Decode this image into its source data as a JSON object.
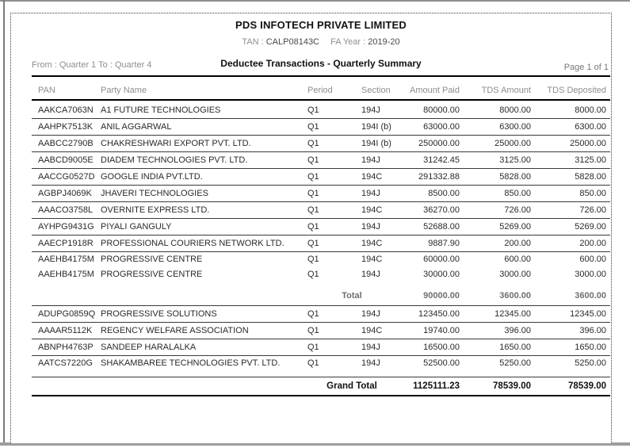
{
  "report": {
    "company": "PDS INFOTECH PRIVATE LIMITED",
    "tan_label": "TAN :",
    "tan_value": "CALP08143C",
    "fa_year_label": "FA Year :",
    "fa_year_value": "2019-20",
    "quarter_range": "From : Quarter 1 To : Quarter 4",
    "title": "Deductee Transactions - Quarterly Summary",
    "page_indicator": "Page 1 of 1"
  },
  "colors": {
    "rule_line": "#000000",
    "muted_text": "#8e8e8e"
  },
  "table": {
    "columns": [
      "PAN",
      "Party Name",
      "Period",
      "Section",
      "Amount Paid",
      "TDS Amount",
      "TDS Deposited"
    ],
    "body": [
      {
        "kind": "row",
        "pan": "AAKCA7063N",
        "party": "A1 FUTURE TECHNOLOGIES",
        "period": "Q1",
        "section": "194J",
        "amount_paid": "80000.00",
        "tds_amount": "8000.00",
        "tds_deposited": "8000.00",
        "divider": true
      },
      {
        "kind": "row",
        "pan": "AAHPK7513K",
        "party": "ANIL AGGARWAL",
        "period": "Q1",
        "section": "194I (b)",
        "amount_paid": "63000.00",
        "tds_amount": "6300.00",
        "tds_deposited": "6300.00",
        "divider": true
      },
      {
        "kind": "row",
        "pan": "AABCC2790B",
        "party": "CHAKRESHWARI EXPORT PVT. LTD.",
        "period": "Q1",
        "section": "194I (b)",
        "amount_paid": "250000.00",
        "tds_amount": "25000.00",
        "tds_deposited": "25000.00",
        "divider": true
      },
      {
        "kind": "row",
        "pan": "AABCD9005E",
        "party": "DIADEM TECHNOLOGIES PVT. LTD.",
        "period": "Q1",
        "section": "194J",
        "amount_paid": "31242.45",
        "tds_amount": "3125.00",
        "tds_deposited": "3125.00",
        "divider": true
      },
      {
        "kind": "row",
        "pan": "AACCG0527D",
        "party": "GOOGLE INDIA PVT.LTD.",
        "period": "Q1",
        "section": "194C",
        "amount_paid": "291332.88",
        "tds_amount": "5828.00",
        "tds_deposited": "5828.00",
        "divider": true
      },
      {
        "kind": "row",
        "pan": "AGBPJ4069K",
        "party": "JHAVERI TECHNOLOGIES",
        "period": "Q1",
        "section": "194J",
        "amount_paid": "8500.00",
        "tds_amount": "850.00",
        "tds_deposited": "850.00",
        "divider": true
      },
      {
        "kind": "row",
        "pan": "AAACO3758L",
        "party": "OVERNITE EXPRESS LTD.",
        "period": "Q1",
        "section": "194C",
        "amount_paid": "36270.00",
        "tds_amount": "726.00",
        "tds_deposited": "726.00",
        "divider": true
      },
      {
        "kind": "row",
        "pan": "AYHPG9431G",
        "party": "PIYALI GANGULY",
        "period": "Q1",
        "section": "194J",
        "amount_paid": "52688.00",
        "tds_amount": "5269.00",
        "tds_deposited": "5269.00",
        "divider": true
      },
      {
        "kind": "row",
        "pan": "AAECP1918R",
        "party": "PROFESSIONAL COURIERS NETWORK LTD.",
        "period": "Q1",
        "section": "194C",
        "amount_paid": "9887.90",
        "tds_amount": "200.00",
        "tds_deposited": "200.00",
        "divider": true
      },
      {
        "kind": "row",
        "pan": "AAEHB4175M",
        "party": "PROGRESSIVE CENTRE",
        "period": "Q1",
        "section": "194C",
        "amount_paid": "60000.00",
        "tds_amount": "600.00",
        "tds_deposited": "600.00",
        "divider": false
      },
      {
        "kind": "row",
        "pan": "AAEHB4175M",
        "party": "PROGRESSIVE CENTRE",
        "period": "Q1",
        "section": "194J",
        "amount_paid": "30000.00",
        "tds_amount": "3000.00",
        "tds_deposited": "3000.00",
        "divider": false
      },
      {
        "kind": "subtotal",
        "label": "Total",
        "amount_paid": "90000.00",
        "tds_amount": "3600.00",
        "tds_deposited": "3600.00"
      },
      {
        "kind": "row",
        "pan": "ADUPG0859Q",
        "party": "PROGRESSIVE SOLUTIONS",
        "period": "Q1",
        "section": "194J",
        "amount_paid": "123450.00",
        "tds_amount": "12345.00",
        "tds_deposited": "12345.00",
        "divider": true
      },
      {
        "kind": "row",
        "pan": "AAAAR5112K",
        "party": "REGENCY WELFARE ASSOCIATION",
        "period": "Q1",
        "section": "194C",
        "amount_paid": "19740.00",
        "tds_amount": "396.00",
        "tds_deposited": "396.00",
        "divider": true
      },
      {
        "kind": "row",
        "pan": "ABNPH4763P",
        "party": "SANDEEP HARALALKA",
        "period": "Q1",
        "section": "194J",
        "amount_paid": "16500.00",
        "tds_amount": "1650.00",
        "tds_deposited": "1650.00",
        "divider": true
      },
      {
        "kind": "row",
        "pan": "AATCS7220G",
        "party": "SHAKAMBAREE TECHNOLOGIES PVT. LTD.",
        "period": "Q1",
        "section": "194J",
        "amount_paid": "52500.00",
        "tds_amount": "5250.00",
        "tds_deposited": "5250.00",
        "divider": false
      },
      {
        "kind": "grandtotal",
        "label": "Grand Total",
        "amount_paid": "1125111.23",
        "tds_amount": "78539.00",
        "tds_deposited": "78539.00"
      }
    ]
  }
}
